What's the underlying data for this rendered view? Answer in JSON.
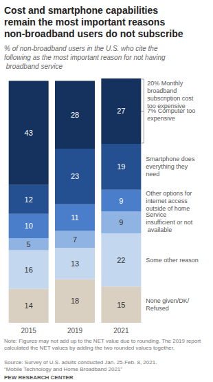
{
  "chart_data": {
    "type": "bar",
    "title": "Cost and smartphone capabilities remain the most important reasons non-broadband users do not subscribe",
    "subtitle": "% of non-broadband users in the U.S. who cite the following as the most important reason for not having broadband service",
    "categories": [
      "2015",
      "2019",
      "2021"
    ],
    "series": [
      {
        "name": "None given/DK/Refused",
        "color": "#d9d0c1",
        "values": [
          14,
          18,
          15
        ]
      },
      {
        "name": "Some other reason",
        "color": "#c3d7ef",
        "values": [
          16,
          13,
          22
        ]
      },
      {
        "name": "Service insufficient or not available",
        "color": "#8fb3e2",
        "values": [
          5,
          7,
          9
        ]
      },
      {
        "name": "Other options for internet access outside of home",
        "color": "#4a7ecb",
        "values": [
          10,
          11,
          9
        ]
      },
      {
        "name": "Smartphone does everything they need",
        "color": "#244f91",
        "values": [
          12,
          23,
          19
        ]
      },
      {
        "color": "#15325f",
        "values": [
          43,
          28,
          27
        ]
      }
    ],
    "annotations": [
      "20% Monthly broadband subscription cost too expensive",
      "7% Computer too expensive"
    ],
    "stacked": true,
    "data_labels": true,
    "grid": false,
    "tick_labels": "x",
    "ylim": [
      0,
      101
    ],
    "note": "Note: Figures may not add up to the NET value due to rounding. The 2019 report calculated the NET values by adding the two rounded values together.",
    "source": "Source: Survey of U.S. adults conducted Jan. 25-Feb. 8, 2021.",
    "report": "“Mobile Technology and Home Broadband 2021”",
    "credit": "PEW RESEARCH CENTER"
  }
}
